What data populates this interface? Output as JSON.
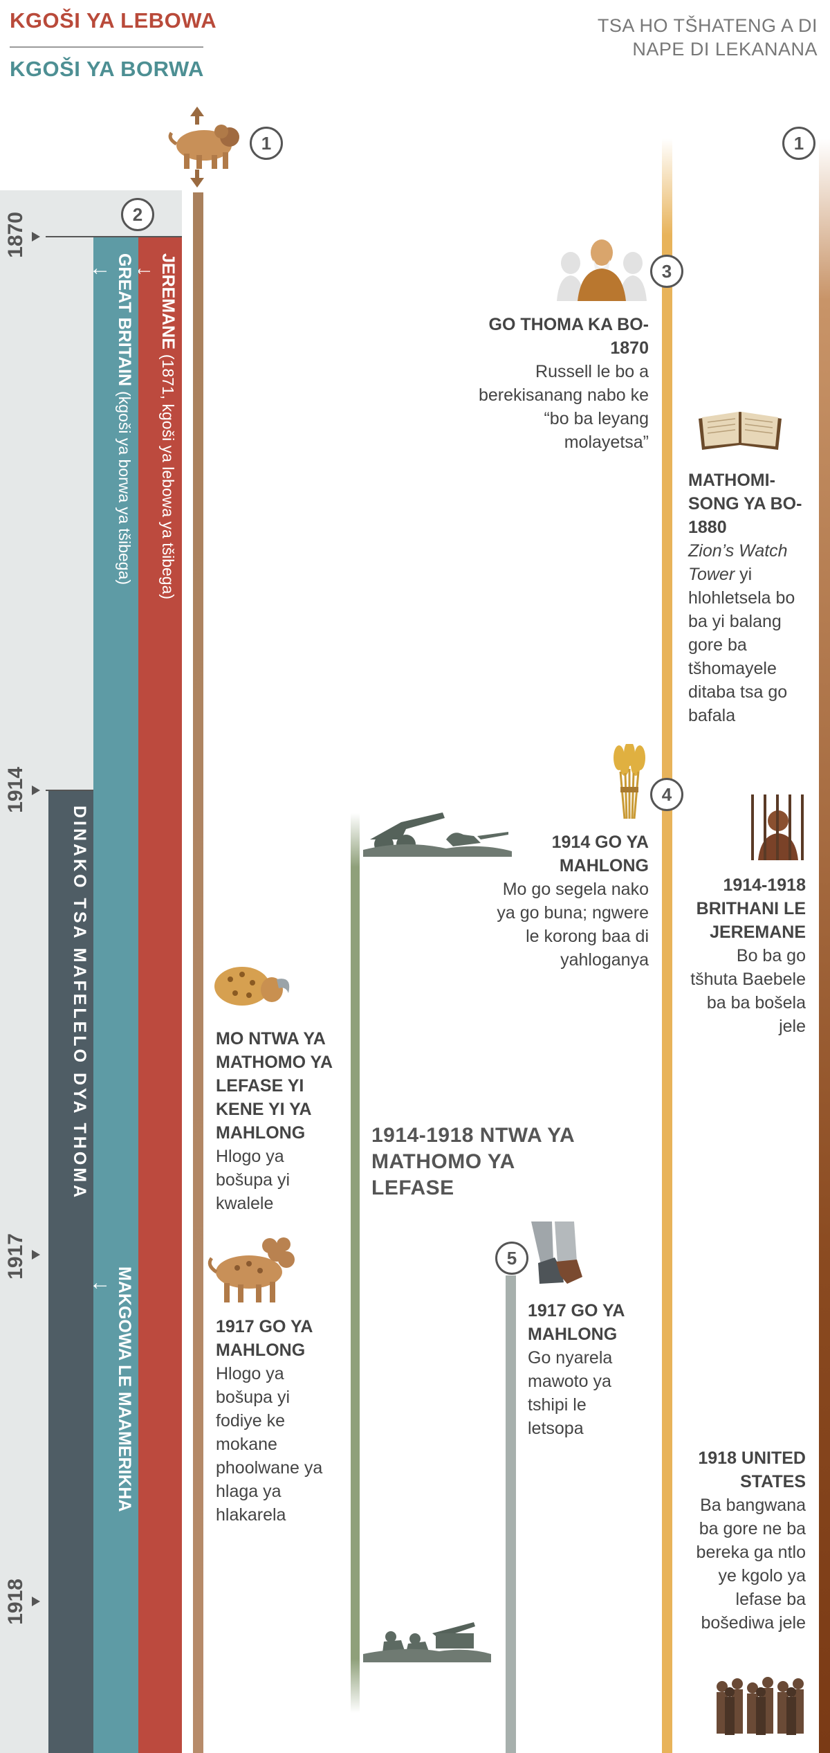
{
  "header": {
    "king_north": "KGOŠI YA LEBOWA",
    "king_south": "KGOŠI YA BORWA",
    "right_title": "TSA HO TŠHATENG A DI NAPE DI LEKANANA"
  },
  "years": [
    "1870",
    "1914",
    "1917",
    "1918"
  ],
  "bars": {
    "germany": "JEREMANE",
    "germany_sub": "(1871, kgoši ya lebowa ya tšibega)",
    "britain": "GREAT BRITAIN",
    "britain_sub": "(kgoši ya borwa ya tšibega)",
    "feet": "DINAKO TSA MAFELELO DYA THOMA",
    "angloam": "MAKGOWA LE MAAMERIKHA",
    "arrow": "↓"
  },
  "markers": [
    "1",
    "2",
    "1",
    "3",
    "4",
    "5"
  ],
  "events": {
    "go_thoma": {
      "title": "GO THOMA KA BO-1870",
      "body": "Russell le bo a berekisanang nabo ke “bo ba leyang molayetsa”"
    },
    "mathomi": {
      "title": "MATHOMI-SONG YA BO-1880",
      "body_italic": "Zion’s Watch Tower",
      "body": " yi hlohletsela bo ba yi balang gore ba tšhomayele ditaba tsa go bafala"
    },
    "mahlong_1914": {
      "title": "1914 GO YA MAHLONG",
      "body": "Mo go segela nako ya go buna; ngwere le korong baa di yahloganya"
    },
    "brithani": {
      "title": "1914-1918 BRITHANI LE JEREMANE",
      "body": "Bo ba go tšhuta Baebele ba ba bošela jele"
    },
    "ntwa_left": {
      "title": "MO NTWA YA MATHOMO YA LEFASE YI KENE YI YA MAHLONG",
      "body": "Hlogo ya bošupa yi kwalele"
    },
    "ntwa_center": {
      "title": "1914-1918 NTWA YA MATHOMO YA LEFASE"
    },
    "mahlong_1917a": {
      "title": "1917 GO YA MAHLONG",
      "body": "Hlogo ya bošupa yi fodiye ke mokane phoolwane ya hlaga ya hlakarela"
    },
    "mahlong_1917b": {
      "title": "1917 GO YA MAHLONG",
      "body": "Go nyarela mawoto ya tshipi le letsopa"
    },
    "united_states": {
      "title": "1918 UNITED STATES",
      "body": "Ba bangwana ba gore ne ba bereka ga ntlo ye kgolo ya lefase ba bošediwa jele"
    }
  },
  "icons": [
    "beast-arrows-icon",
    "russell-group-icon",
    "open-book-icon",
    "wheat-bundle-icon",
    "prisoner-bars-icon",
    "soldiers-artillery-icon",
    "beast-head-wounded-icon",
    "four-headed-beast-icon",
    "iron-clay-feet-icon",
    "soldiers-artillery-icon",
    "crowd-icon"
  ]
}
